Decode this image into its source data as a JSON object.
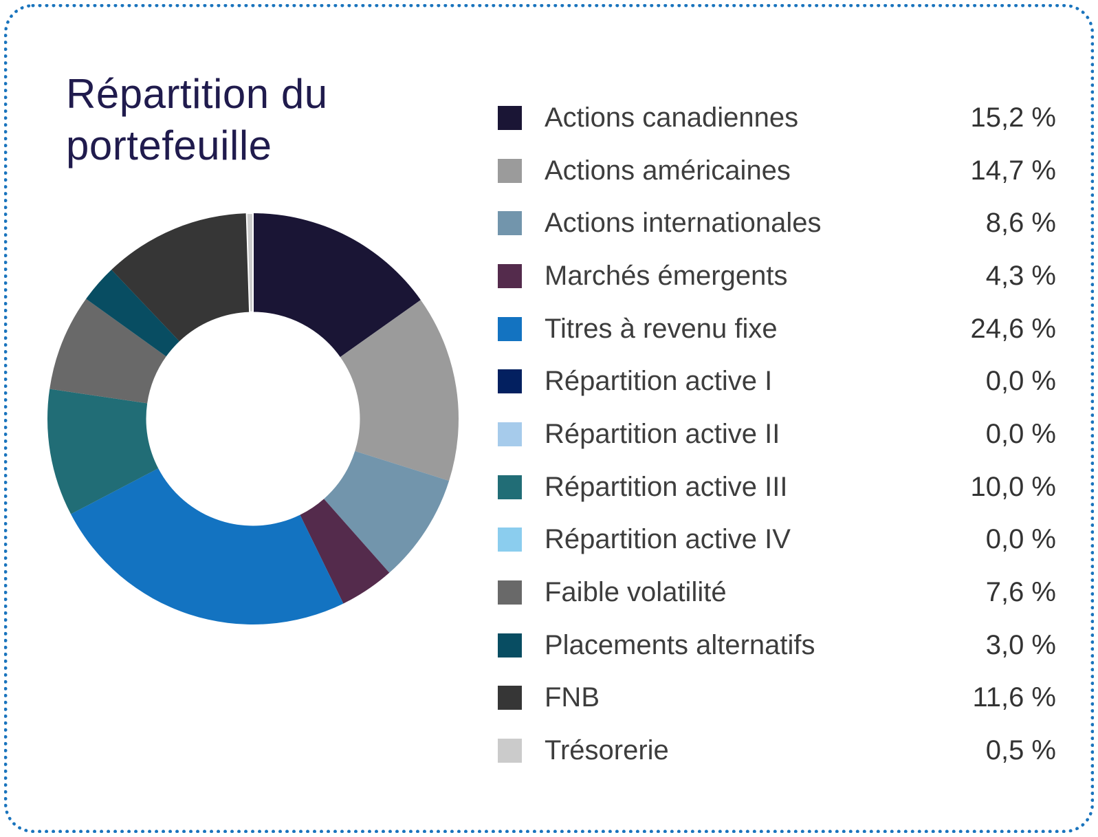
{
  "card": {
    "border_color": "#1a74bd",
    "background_color": "#ffffff"
  },
  "title": {
    "text": "Répartition du portefeuille",
    "color": "#201b4d"
  },
  "chart_data": {
    "type": "pie",
    "subtype": "donut",
    "title": "Répartition du portefeuille",
    "inner_radius_ratio": 0.52,
    "start_angle": "top",
    "direction": "clockwise",
    "legend_position": "right",
    "categories": [
      "Actions canadiennes",
      "Actions américaines",
      "Actions internationales",
      "Marchés émergents",
      "Titres à revenu fixe",
      "Répartition active I",
      "Répartition active II",
      "Répartition active III",
      "Répartition active IV",
      "Faible volatilité",
      "Placements alternatifs",
      "FNB",
      "Trésorerie"
    ],
    "values": [
      15.2,
      14.7,
      8.6,
      4.3,
      24.6,
      0.0,
      0.0,
      10.0,
      0.0,
      7.6,
      3.0,
      11.6,
      0.5
    ],
    "value_labels": [
      "15,2 %",
      "14,7 %",
      "8,6 %",
      "4,3 %",
      "24,6 %",
      "0,0 %",
      "0,0 %",
      "10,0 %",
      "0,0 %",
      "7,6 %",
      "3,0 %",
      "11,6 %",
      "0,5 %"
    ],
    "colors": [
      "#1a1535",
      "#9b9b9b",
      "#7295ac",
      "#542b4c",
      "#1373c1",
      "#032060",
      "#a6cbeb",
      "#216d76",
      "#8bcdee",
      "#696969",
      "#084d62",
      "#363636",
      "#cbcbcb"
    ],
    "thin_slice_stroke": "#ffffff"
  }
}
